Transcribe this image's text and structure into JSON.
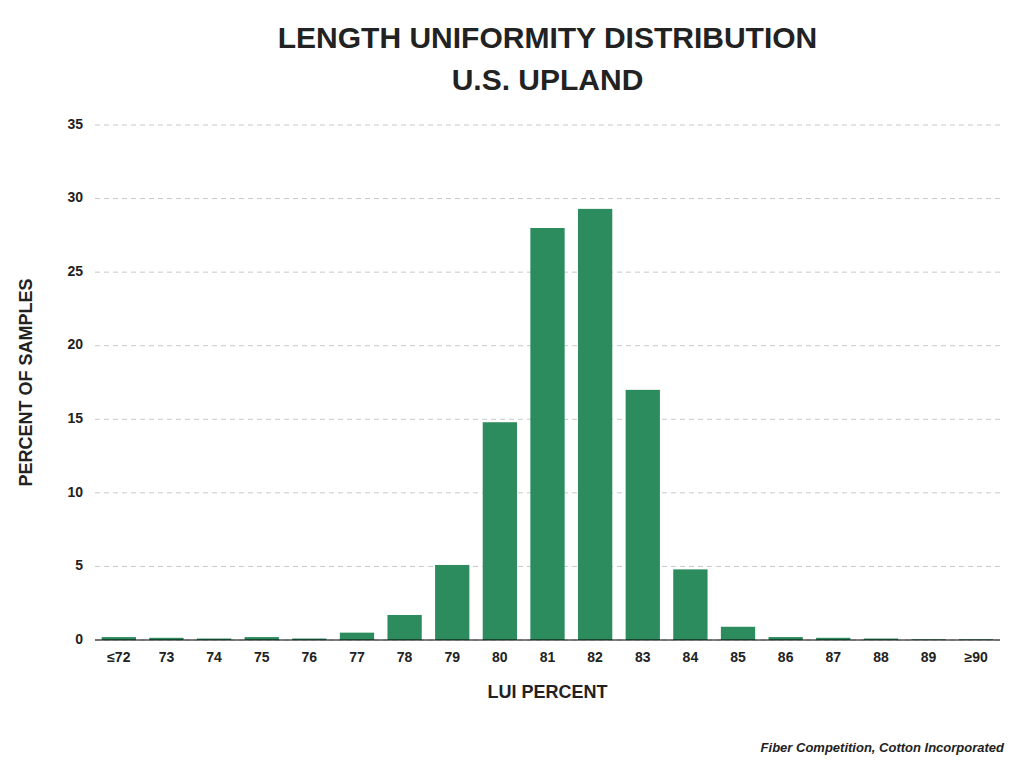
{
  "chart_data": {
    "type": "bar",
    "title": "LENGTH UNIFORMITY DISTRIBUTION",
    "subtitle": "U.S. UPLAND",
    "xlabel": "LUI PERCENT",
    "ylabel": "PERCENT OF SAMPLES",
    "categories": [
      "≤72",
      "73",
      "74",
      "75",
      "76",
      "77",
      "78",
      "79",
      "80",
      "81",
      "82",
      "83",
      "84",
      "85",
      "86",
      "87",
      "88",
      "89",
      "≥90"
    ],
    "values": [
      0.2,
      0.15,
      0.1,
      0.2,
      0.1,
      0.5,
      1.7,
      5.1,
      14.8,
      28.0,
      29.3,
      17.0,
      4.8,
      0.9,
      0.2,
      0.15,
      0.1,
      0.05,
      0.05
    ],
    "color": "#2d8c5e",
    "ylim": [
      0,
      35
    ],
    "yticks": [
      0,
      5,
      10,
      15,
      20,
      25,
      30,
      35
    ],
    "grid": true,
    "annotations": [
      "Fiber Competition, Cotton Incorporated"
    ]
  }
}
